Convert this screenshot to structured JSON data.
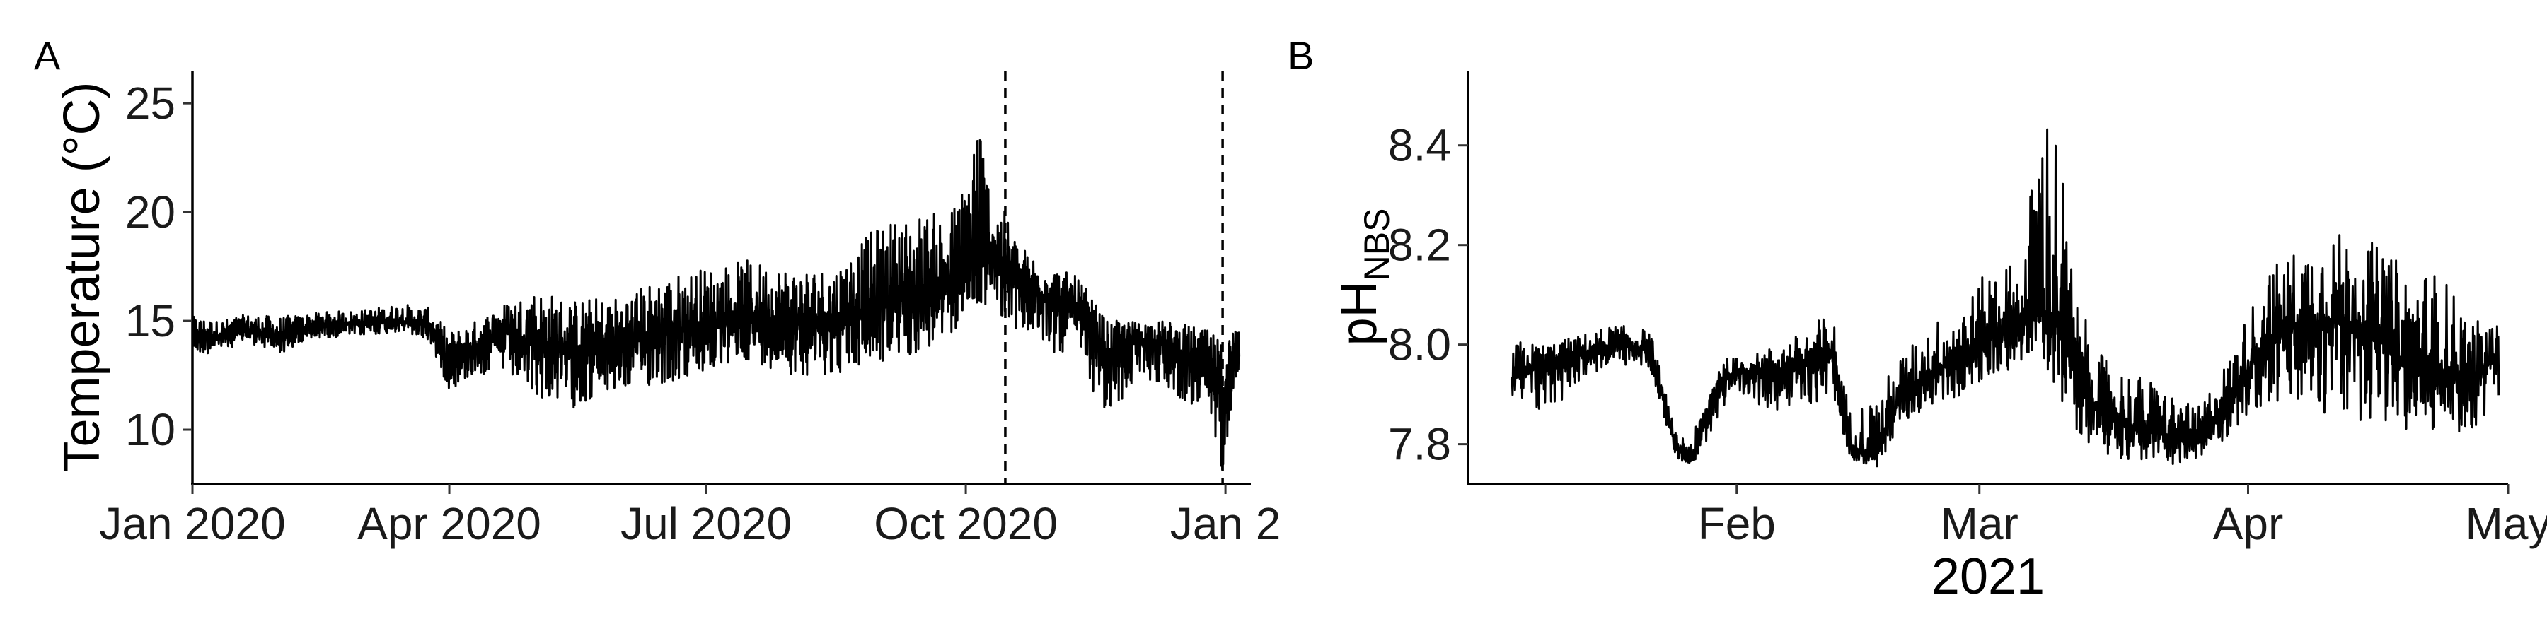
{
  "chart_data": [
    {
      "panel_label": "A",
      "type": "line",
      "ylabel": "Temperature (°C)",
      "xlabel": "",
      "x_range": [
        "2020-01-01",
        "2021-01-10"
      ],
      "ylim": [
        7.5,
        26.5
      ],
      "y_ticks": [
        10,
        15,
        20,
        25
      ],
      "x_ticks": [
        {
          "date": "2020-01-01",
          "label": "Jan 2020"
        },
        {
          "date": "2020-04-01",
          "label": "Apr 2020"
        },
        {
          "date": "2020-07-01",
          "label": "Jul 2020"
        },
        {
          "date": "2020-10-01",
          "label": "Oct 2020"
        },
        {
          "date": "2021-01-01",
          "label": "Jan 2"
        }
      ],
      "vlines": [
        {
          "date": "2020-10-15",
          "style": "dashed"
        },
        {
          "date": "2020-12-31",
          "style": "dashed"
        }
      ],
      "grid": false,
      "series": [
        {
          "x": [
            "2020-01-01",
            "2020-01-10",
            "2020-01-20",
            "2020-02-01",
            "2020-02-15",
            "2020-03-01",
            "2020-03-15",
            "2020-03-25",
            "2020-04-01",
            "2020-04-10",
            "2020-04-20",
            "2020-05-01",
            "2020-05-15",
            "2020-06-01",
            "2020-06-15",
            "2020-07-01",
            "2020-07-15",
            "2020-08-01",
            "2020-08-15",
            "2020-09-01",
            "2020-09-15",
            "2020-09-25",
            "2020-10-01",
            "2020-10-05",
            "2020-10-10",
            "2020-10-15",
            "2020-10-20",
            "2020-11-01",
            "2020-11-10",
            "2020-11-20",
            "2020-12-01",
            "2020-12-10",
            "2020-12-20",
            "2020-12-27",
            "2020-12-31",
            "2021-01-03",
            "2021-01-06"
          ],
          "y": [
            14.5,
            14.3,
            14.6,
            14.2,
            14.8,
            14.9,
            15.0,
            14.8,
            13.0,
            13.8,
            14.5,
            14.0,
            13.5,
            13.8,
            14.5,
            14.7,
            15.0,
            14.9,
            14.8,
            15.8,
            16.0,
            16.5,
            17.5,
            17.8,
            18.0,
            17.5,
            16.5,
            16.0,
            15.5,
            13.5,
            14.2,
            14.0,
            13.2,
            12.8,
            11.5,
            13.0,
            14.5
          ],
          "y_min": [
            13.3,
            13.6,
            14.0,
            13.5,
            14.2,
            14.3,
            14.5,
            14.0,
            11.8,
            12.5,
            12.5,
            11.5,
            11.0,
            11.8,
            12.0,
            12.5,
            13.2,
            12.5,
            12.5,
            13.0,
            13.5,
            14.0,
            15.5,
            15.5,
            15.8,
            15.0,
            14.5,
            13.5,
            13.5,
            10.0,
            12.5,
            12.0,
            11.0,
            10.0,
            8.0,
            11.0,
            13.0
          ],
          "y_max": [
            15.2,
            15.0,
            15.3,
            15.2,
            15.4,
            15.5,
            15.8,
            15.6,
            14.5,
            15.0,
            15.8,
            16.5,
            16.0,
            16.2,
            17.0,
            17.5,
            17.8,
            17.5,
            17.5,
            19.5,
            20.0,
            20.0,
            21.5,
            25.8,
            20.8,
            20.0,
            18.5,
            17.5,
            17.0,
            15.0,
            15.0,
            15.0,
            14.8,
            14.5,
            14.0,
            14.6,
            14.8
          ]
        }
      ]
    },
    {
      "panel_label": "B",
      "type": "line",
      "ylabel_main": "pH",
      "ylabel_sub": "NBS",
      "xlabel": "2021",
      "x_range": [
        "2021-01-01",
        "2021-05-01"
      ],
      "ylim": [
        7.72,
        8.55
      ],
      "y_ticks": [
        7.8,
        8.0,
        8.2,
        8.4
      ],
      "x_ticks": [
        {
          "date": "2021-02-01",
          "label": "Feb"
        },
        {
          "date": "2021-03-01",
          "label": "Mar"
        },
        {
          "date": "2021-04-01",
          "label": "Apr"
        },
        {
          "date": "2021-05-01",
          "label": "May"
        }
      ],
      "grid": false,
      "series": [
        {
          "x": [
            "2021-01-06",
            "2021-01-10",
            "2021-01-14",
            "2021-01-18",
            "2021-01-22",
            "2021-01-25",
            "2021-01-27",
            "2021-01-30",
            "2021-02-03",
            "2021-02-08",
            "2021-02-12",
            "2021-02-14",
            "2021-02-17",
            "2021-02-20",
            "2021-02-24",
            "2021-02-28",
            "2021-03-03",
            "2021-03-06",
            "2021-03-08",
            "2021-03-10",
            "2021-03-12",
            "2021-03-15",
            "2021-03-18",
            "2021-03-22",
            "2021-03-26",
            "2021-03-30",
            "2021-04-03",
            "2021-04-07",
            "2021-04-11",
            "2021-04-15",
            "2021-04-19",
            "2021-04-23",
            "2021-04-27",
            "2021-04-30"
          ],
          "y": [
            7.93,
            7.97,
            7.98,
            8.0,
            7.99,
            7.79,
            7.77,
            7.93,
            7.95,
            7.95,
            7.98,
            7.8,
            7.77,
            7.9,
            7.95,
            7.98,
            8.02,
            8.05,
            8.06,
            8.04,
            7.95,
            7.86,
            7.84,
            7.82,
            7.8,
            7.9,
            8.0,
            8.04,
            8.05,
            8.03,
            7.96,
            7.95,
            7.93,
            7.98
          ],
          "y_min": [
            7.88,
            7.85,
            7.93,
            7.96,
            7.95,
            7.77,
            7.76,
            7.85,
            7.88,
            7.86,
            7.9,
            7.77,
            7.75,
            7.84,
            7.88,
            7.9,
            7.94,
            7.96,
            7.98,
            7.9,
            7.83,
            7.78,
            7.77,
            7.76,
            7.76,
            7.82,
            7.88,
            7.86,
            7.84,
            7.85,
            7.82,
            7.82,
            7.82,
            7.9
          ],
          "y_max": [
            8.01,
            8.0,
            8.02,
            8.04,
            8.03,
            7.82,
            7.82,
            7.97,
            7.98,
            8.02,
            8.07,
            7.87,
            7.9,
            7.98,
            8.05,
            8.1,
            8.18,
            8.15,
            8.52,
            8.46,
            8.1,
            7.98,
            7.95,
            7.92,
            7.87,
            7.98,
            8.15,
            8.2,
            8.23,
            8.21,
            8.16,
            8.15,
            8.05,
            8.04
          ]
        }
      ]
    }
  ]
}
